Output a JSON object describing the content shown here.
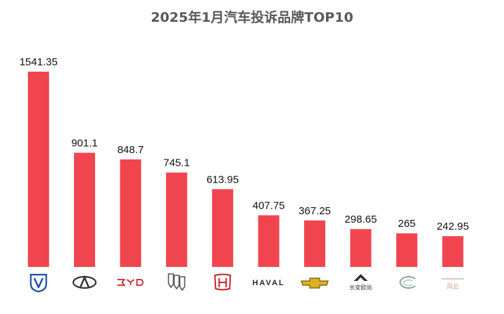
{
  "title": "2025年1月汽车投诉品牌TOP10",
  "colors": {
    "bar": "#f0454f",
    "label": "#111111",
    "title": "#595959"
  },
  "chart_data": {
    "type": "bar",
    "title": "2025年1月汽车投诉品牌TOP10",
    "categories": [
      "changan-logo",
      "chery-logo",
      "byd-logo",
      "buick-logo",
      "honda-logo",
      "haval-logo",
      "chevrolet-logo",
      "changan-oushang-logo",
      "geely-galaxy-logo",
      "chery-fulwin-logo"
    ],
    "values": [
      1541.35,
      901.1,
      848.7,
      745.1,
      613.95,
      407.75,
      367.25,
      298.65,
      265,
      242.95
    ],
    "value_labels": [
      "1541.35",
      "901.1",
      "848.7",
      "745.1",
      "613.95",
      "407.75",
      "367.25",
      "298.65",
      "265",
      "242.95"
    ],
    "logo_text": {
      "haval": "HAVAL",
      "changan_oushang": "长安欧尚",
      "fulwin": "风云"
    },
    "ylim": [
      0,
      1541.35
    ],
    "grid": false,
    "legend": "none"
  }
}
